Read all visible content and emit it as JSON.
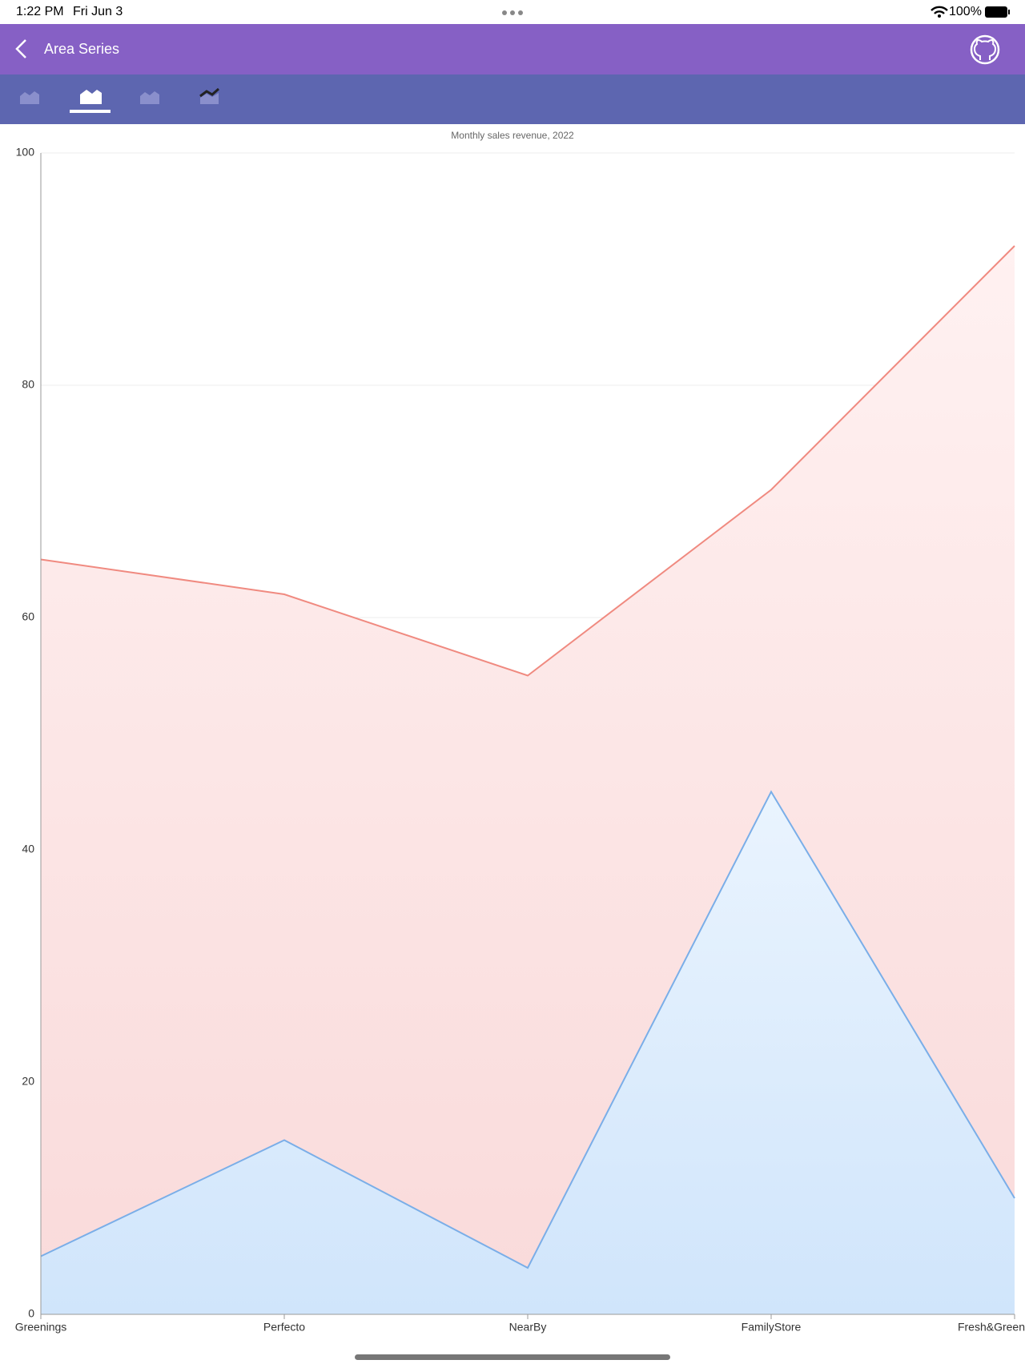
{
  "status_bar": {
    "time": "1:22 PM",
    "date": "Fri Jun 3",
    "battery": "100%"
  },
  "header": {
    "title": "Area Series"
  },
  "chart_data": {
    "type": "area",
    "title": "Monthly sales revenue, 2022",
    "categories": [
      "Greenings",
      "Perfecto",
      "NearBy",
      "FamilyStore",
      "Fresh&Green"
    ],
    "series": [
      {
        "color": "#f08a80",
        "values": [
          65,
          62,
          55,
          71,
          92
        ]
      },
      {
        "color": "#7aaee8",
        "values": [
          5,
          15,
          4,
          45,
          10
        ]
      }
    ],
    "ylim": [
      0,
      100
    ],
    "yticks": [
      0,
      20,
      40,
      60,
      80,
      100
    ],
    "grid": true
  }
}
